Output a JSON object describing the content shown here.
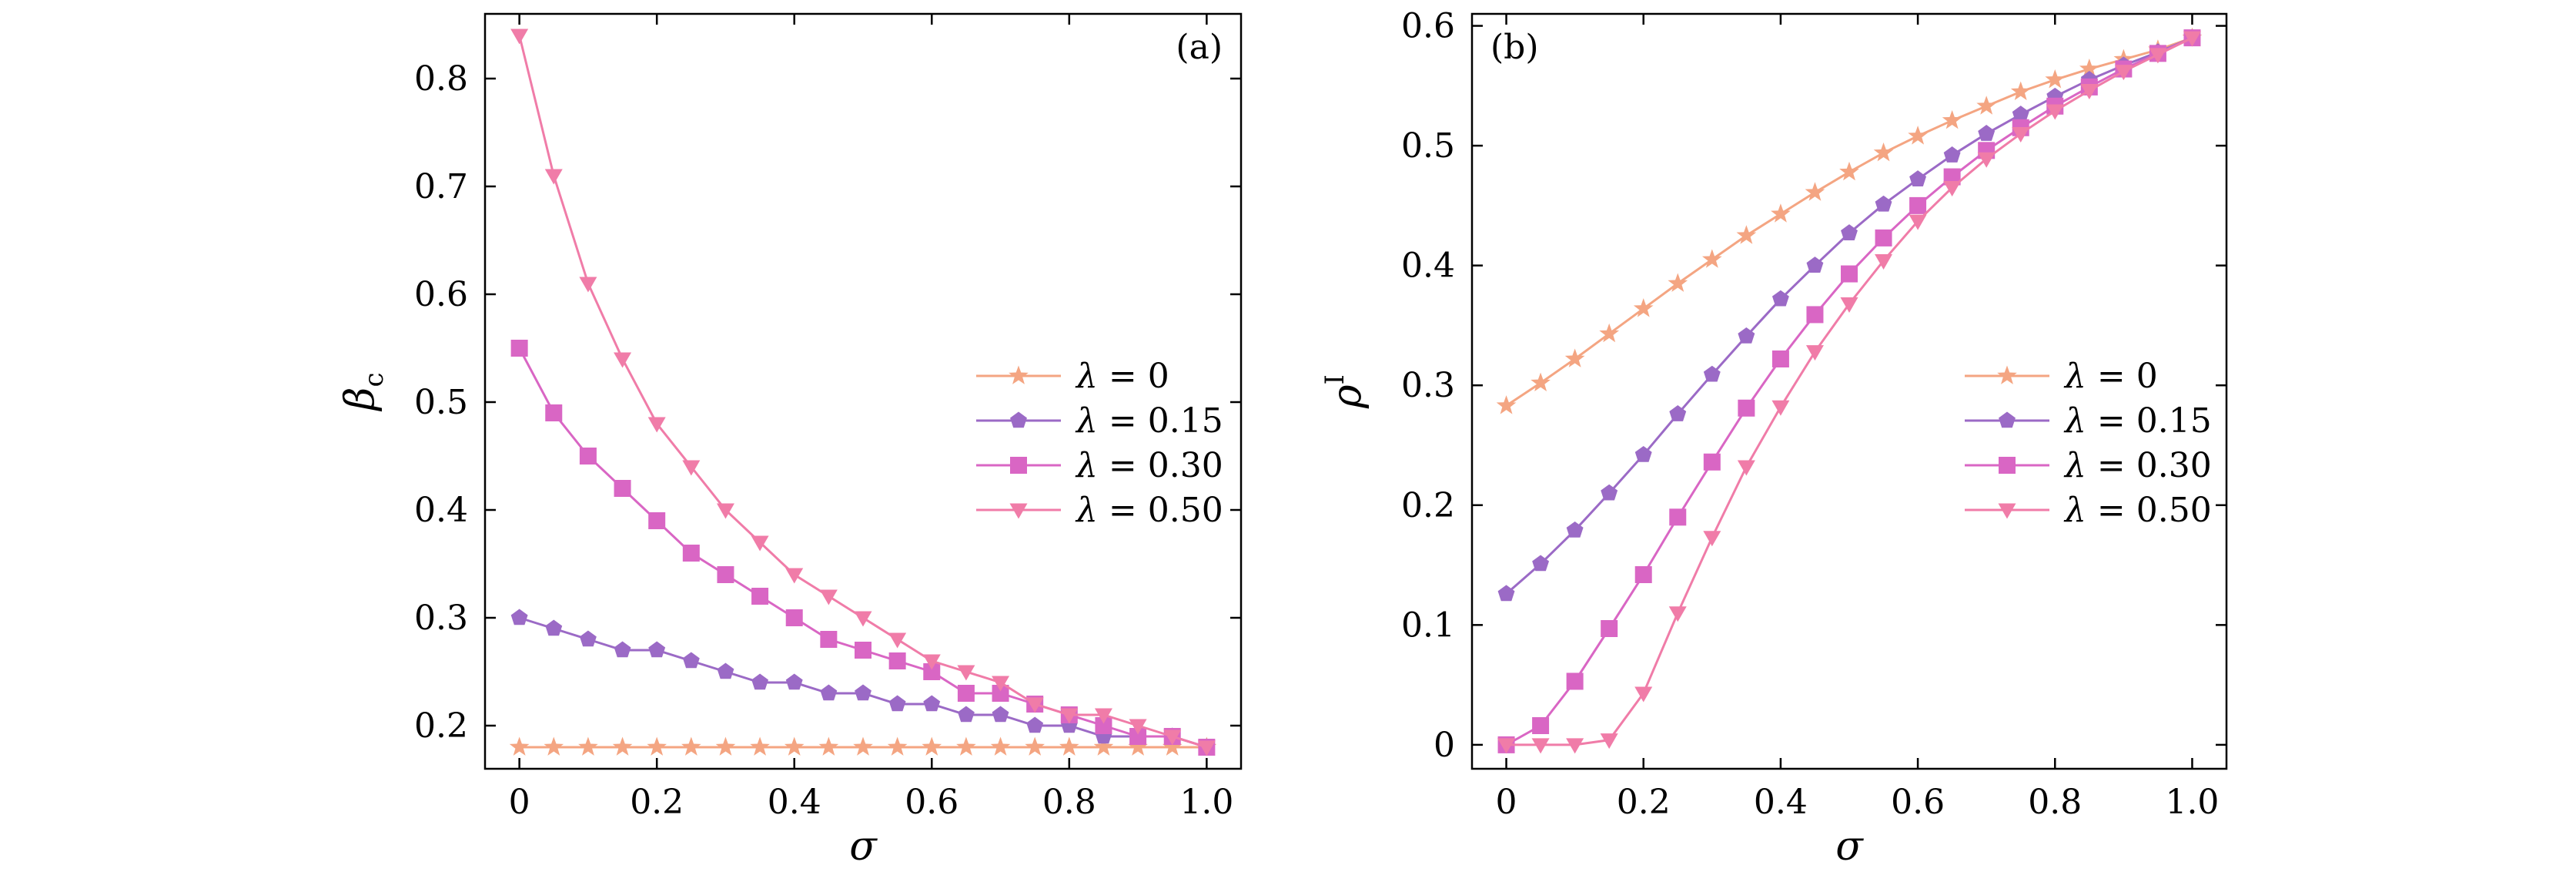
{
  "chart_data": [
    {
      "type": "line",
      "panel_label": "(a)",
      "xlabel": "σ",
      "ylabel_symbol": "β",
      "ylabel_sub": "c",
      "xlim": [
        -0.05,
        1.05
      ],
      "ylim": [
        0.16,
        0.86
      ],
      "xticks": [
        0,
        0.2,
        0.4,
        0.6,
        0.8,
        1.0
      ],
      "xtick_labels": [
        "0",
        "0.2",
        "0.4",
        "0.6",
        "0.8",
        "1.0"
      ],
      "yticks": [
        0.2,
        0.3,
        0.4,
        0.5,
        0.6,
        0.7,
        0.8
      ],
      "ytick_labels": [
        "0.2",
        "0.3",
        "0.4",
        "0.5",
        "0.6",
        "0.7",
        "0.8"
      ],
      "legend_position": "center-right",
      "x": [
        0,
        0.05,
        0.1,
        0.15,
        0.2,
        0.25,
        0.3,
        0.35,
        0.4,
        0.45,
        0.5,
        0.55,
        0.6,
        0.65,
        0.7,
        0.75,
        0.8,
        0.85,
        0.9,
        0.95,
        1.0
      ],
      "series": [
        {
          "name": "λ = 0",
          "color": "#f4a582",
          "marker": "star",
          "values": [
            0.18,
            0.18,
            0.18,
            0.18,
            0.18,
            0.18,
            0.18,
            0.18,
            0.18,
            0.18,
            0.18,
            0.18,
            0.18,
            0.18,
            0.18,
            0.18,
            0.18,
            0.18,
            0.18,
            0.18,
            0.18
          ]
        },
        {
          "name": "λ = 0.15",
          "color": "#9b6ac6",
          "marker": "pentagon",
          "values": [
            0.3,
            0.29,
            0.28,
            0.27,
            0.27,
            0.26,
            0.25,
            0.24,
            0.24,
            0.23,
            0.23,
            0.22,
            0.22,
            0.21,
            0.21,
            0.2,
            0.2,
            0.19,
            0.19,
            0.19,
            0.18
          ]
        },
        {
          "name": "λ = 0.30",
          "color": "#d966c4",
          "marker": "square",
          "values": [
            0.55,
            0.49,
            0.45,
            0.42,
            0.39,
            0.36,
            0.34,
            0.32,
            0.3,
            0.28,
            0.27,
            0.26,
            0.25,
            0.23,
            0.23,
            0.22,
            0.21,
            0.2,
            0.19,
            0.19,
            0.18
          ]
        },
        {
          "name": "λ = 0.50",
          "color": "#f07ca8",
          "marker": "triangle-down",
          "values": [
            0.84,
            0.71,
            0.61,
            0.54,
            0.48,
            0.44,
            0.4,
            0.37,
            0.34,
            0.32,
            0.3,
            0.28,
            0.26,
            0.25,
            0.24,
            0.22,
            0.21,
            0.21,
            0.2,
            0.19,
            0.18
          ]
        }
      ]
    },
    {
      "type": "line",
      "panel_label": "(b)",
      "xlabel": "σ",
      "ylabel_symbol": "ρ",
      "ylabel_sup": "I",
      "xlim": [
        -0.05,
        1.05
      ],
      "ylim": [
        -0.02,
        0.61
      ],
      "xticks": [
        0,
        0.2,
        0.4,
        0.6,
        0.8,
        1.0
      ],
      "xtick_labels": [
        "0",
        "0.2",
        "0.4",
        "0.6",
        "0.8",
        "1.0"
      ],
      "yticks": [
        0,
        0.1,
        0.2,
        0.3,
        0.4,
        0.5,
        0.6
      ],
      "ytick_labels": [
        "0",
        "0.1",
        "0.2",
        "0.3",
        "0.4",
        "0.5",
        "0.6"
      ],
      "legend_position": "center-right",
      "x": [
        0,
        0.05,
        0.1,
        0.15,
        0.2,
        0.25,
        0.3,
        0.35,
        0.4,
        0.45,
        0.5,
        0.55,
        0.6,
        0.65,
        0.7,
        0.75,
        0.8,
        0.85,
        0.9,
        0.95,
        1.0
      ],
      "series": [
        {
          "name": "λ = 0",
          "color": "#f4a582",
          "marker": "star",
          "values": [
            0.283,
            0.302,
            0.322,
            0.343,
            0.364,
            0.385,
            0.405,
            0.425,
            0.443,
            0.461,
            0.478,
            0.494,
            0.508,
            0.521,
            0.533,
            0.545,
            0.555,
            0.564,
            0.572,
            0.58,
            0.59
          ]
        },
        {
          "name": "λ = 0.15",
          "color": "#9b6ac6",
          "marker": "pentagon",
          "values": [
            0.126,
            0.151,
            0.179,
            0.21,
            0.242,
            0.276,
            0.309,
            0.341,
            0.372,
            0.4,
            0.427,
            0.451,
            0.472,
            0.492,
            0.51,
            0.526,
            0.541,
            0.555,
            0.567,
            0.578,
            0.59
          ]
        },
        {
          "name": "λ = 0.30",
          "color": "#d966c4",
          "marker": "square",
          "values": [
            0.0,
            0.016,
            0.053,
            0.097,
            0.142,
            0.19,
            0.236,
            0.281,
            0.322,
            0.359,
            0.393,
            0.423,
            0.45,
            0.474,
            0.496,
            0.515,
            0.533,
            0.549,
            0.564,
            0.577,
            0.59
          ]
        },
        {
          "name": "λ = 0.50",
          "color": "#f07ca8",
          "marker": "triangle-down",
          "values": [
            0.0,
            0.0,
            0.0,
            0.004,
            0.043,
            0.11,
            0.173,
            0.232,
            0.282,
            0.328,
            0.368,
            0.404,
            0.437,
            0.465,
            0.489,
            0.51,
            0.529,
            0.546,
            0.562,
            0.576,
            0.59
          ]
        }
      ]
    }
  ]
}
